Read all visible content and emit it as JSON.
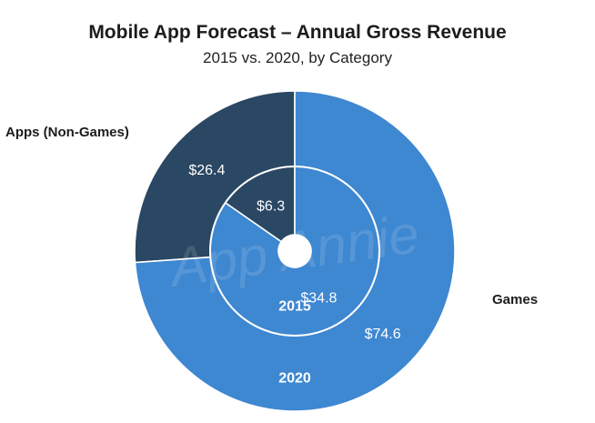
{
  "chart_data": {
    "type": "pie",
    "subtype": "nested-donut",
    "title": "Mobile App Forecast – Annual Gross Revenue",
    "subtitle": "2015 vs. 2020, by Category",
    "categories": [
      "Apps (Non-Games)",
      "Games"
    ],
    "series": [
      {
        "name": "2015",
        "ring": "inner",
        "values": [
          6.3,
          34.8
        ],
        "labels": [
          "$6.3",
          "$34.8"
        ]
      },
      {
        "name": "2020",
        "ring": "outer",
        "values": [
          26.4,
          74.6
        ],
        "labels": [
          "$26.4",
          "$74.6"
        ]
      }
    ],
    "colors": {
      "apps": "#2a4763",
      "games": "#3e87d1",
      "ring_outline": "#ffffff"
    },
    "legend_placement": "beside-slices",
    "watermark": "App Annie"
  }
}
